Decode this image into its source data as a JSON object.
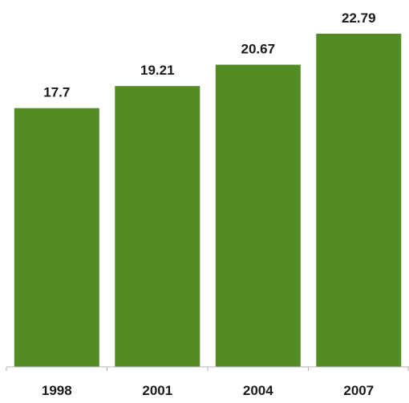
{
  "chart_data": {
    "type": "bar",
    "title": "",
    "xlabel": "",
    "ylabel": "",
    "categories": [
      "1998",
      "2001",
      "2004",
      "2007"
    ],
    "values": [
      17.7,
      19.21,
      20.67,
      22.79
    ],
    "data_labels": [
      "17.7",
      "19.21",
      "20.67",
      "22.79"
    ],
    "ylim": [
      0,
      24.6
    ],
    "grid": false,
    "legend": "none",
    "bar_color": "#538b24",
    "axis_color": "#b0b0b0"
  }
}
